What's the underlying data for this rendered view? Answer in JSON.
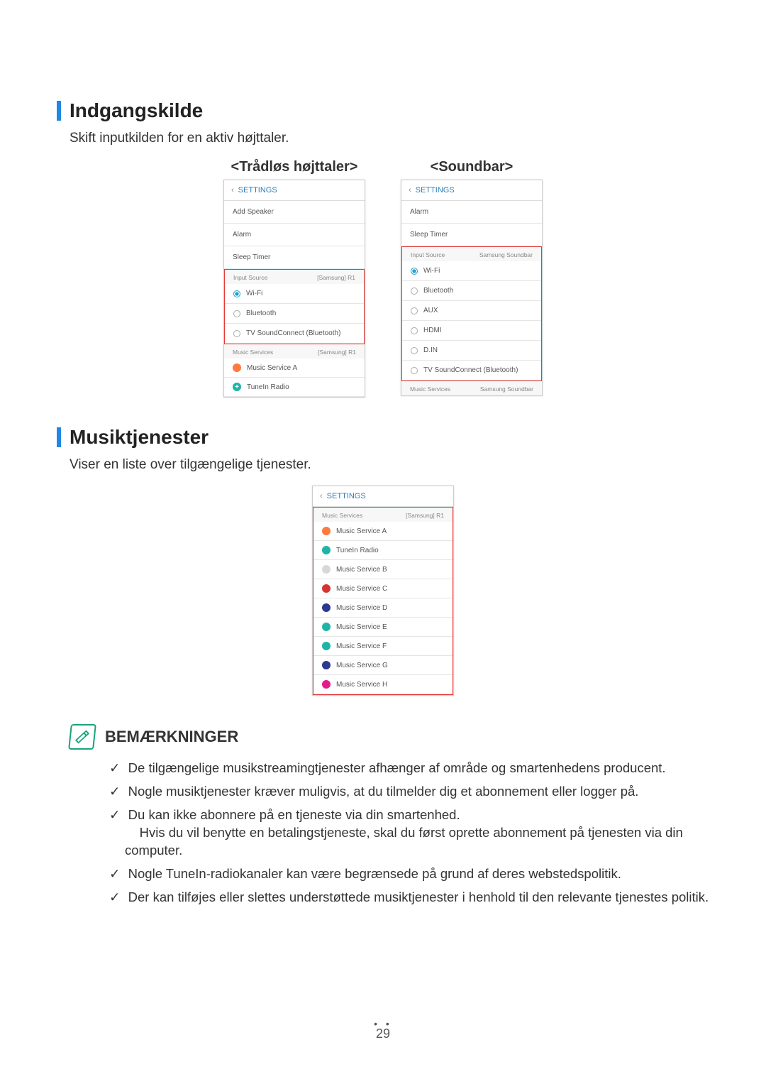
{
  "section1": {
    "title": "Indgangskilde",
    "desc": "Skift inputkilden for en aktiv højttaler.",
    "leftLabel": "<Trådløs højttaler>",
    "rightLabel": "<Soundbar>"
  },
  "leftScreen": {
    "header": "SETTINGS",
    "items": [
      "Add Speaker",
      "Alarm",
      "Sleep Timer"
    ],
    "inputSourceLabel": "Input Source",
    "inputSourceDevice": "[Samsung] R1",
    "radios": [
      {
        "label": "Wi-Fi",
        "selected": true
      },
      {
        "label": "Bluetooth",
        "selected": false
      },
      {
        "label": "TV SoundConnect (Bluetooth)",
        "selected": false
      }
    ],
    "musicServicesLabel": "Music Services",
    "musicServicesDevice": "[Samsung] R1",
    "services": [
      {
        "label": "Music Service A",
        "color": "#ff7a3d"
      },
      {
        "label": "TuneIn Radio",
        "color": "#1fb4a6",
        "plus": true
      }
    ]
  },
  "rightScreen": {
    "header": "SETTINGS",
    "items": [
      "Alarm",
      "Sleep Timer"
    ],
    "inputSourceLabel": "Input Source",
    "inputSourceDevice": "Samsung Soundbar",
    "radios": [
      {
        "label": "Wi-Fi",
        "selected": true
      },
      {
        "label": "Bluetooth",
        "selected": false
      },
      {
        "label": "AUX",
        "selected": false
      },
      {
        "label": "HDMI",
        "selected": false
      },
      {
        "label": "D.IN",
        "selected": false
      },
      {
        "label": "TV SoundConnect (Bluetooth)",
        "selected": false
      }
    ],
    "musicServicesLabel": "Music Services",
    "musicServicesDevice": "Samsung Soundbar"
  },
  "section2": {
    "title": "Musiktjenester",
    "desc": "Viser en liste over tilgængelige tjenester."
  },
  "servicesScreen": {
    "header": "SETTINGS",
    "groupLabel": "Music Services",
    "groupDevice": "[Samsung] R1",
    "services": [
      {
        "label": "Music Service A",
        "color": "#ff7a3d"
      },
      {
        "label": "TuneIn Radio",
        "color": "#1fb4a6"
      },
      {
        "label": "Music Service B",
        "color": "#d8d8d8"
      },
      {
        "label": "Music Service C",
        "color": "#d73333"
      },
      {
        "label": "Music Service D",
        "color": "#2b3a8f"
      },
      {
        "label": "Music Service E",
        "color": "#1fb4a6"
      },
      {
        "label": "Music Service F",
        "color": "#1fb4a6"
      },
      {
        "label": "Music Service G",
        "color": "#2b3a8f"
      },
      {
        "label": "Music Service H",
        "color": "#e61a8c"
      }
    ]
  },
  "notes": {
    "title": "BEMÆRKNINGER",
    "items": [
      "De tilgængelige musikstreamingtjenester afhænger af område og smartenhedens producent.",
      "Nogle musiktjenester kræver muligvis, at du tilmelder dig et abonnement eller logger på.",
      "Du kan ikke abonnere på en tjeneste via din smartenhed.\nHvis du vil benytte en betalingstjeneste, skal du først oprette abonnement på tjenesten via din computer.",
      "Nogle TuneIn-radiokanaler kan være begrænsede på grund af deres webstedspolitik.",
      "Der kan tilføjes eller slettes understøttede musiktjenester i henhold til den relevante tjenestes politik."
    ]
  },
  "pageNumber": "29"
}
